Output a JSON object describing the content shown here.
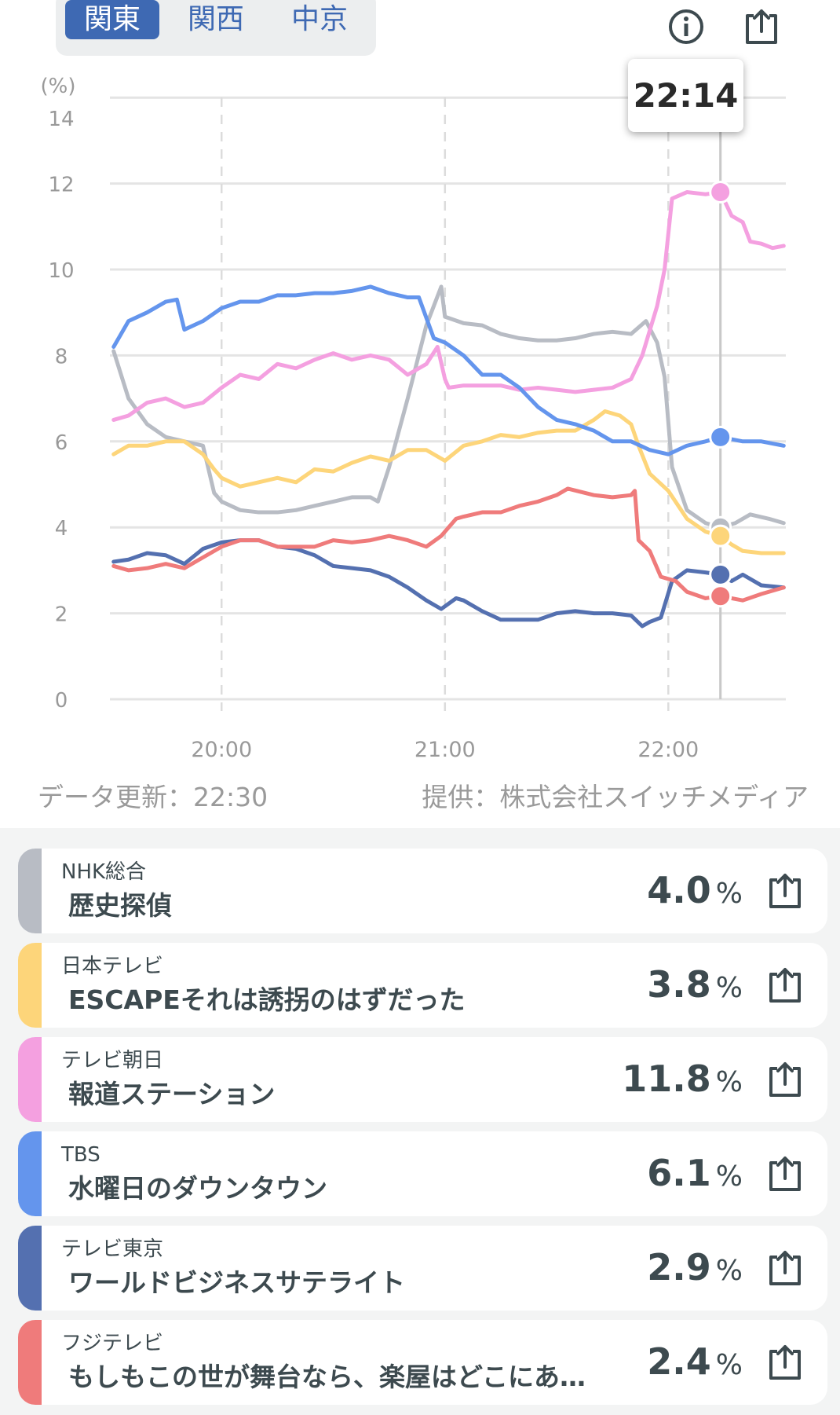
{
  "tabs": [
    {
      "label": "関東",
      "active": true
    },
    {
      "label": "関西",
      "active": false
    },
    {
      "label": "中京",
      "active": false
    }
  ],
  "header_icons": [
    "info-icon",
    "share-icon"
  ],
  "tooltip": {
    "time": "22:14"
  },
  "footer": {
    "updated": "データ更新：22:30",
    "provider": "提供：株式会社スイッチメディア"
  },
  "chart_data": {
    "type": "line",
    "ylabel": "(%)",
    "ylim": [
      0,
      14
    ],
    "yticks": [
      "0",
      "2",
      "4",
      "6",
      "8",
      "10",
      "12",
      "14"
    ],
    "xlim_minutes_from_1930": [
      0,
      182
    ],
    "xticks": [
      {
        "label": "20:00",
        "minute": 30
      },
      {
        "label": "21:00",
        "minute": 90
      },
      {
        "label": "22:00",
        "minute": 150
      }
    ],
    "cursor_minute": 164,
    "grid": true,
    "series": [
      {
        "name": "NHK総合",
        "color": "#b8bcc4",
        "cursor_value": 4.0,
        "points": [
          [
            1,
            8.1
          ],
          [
            5,
            7.0
          ],
          [
            10,
            6.4
          ],
          [
            15,
            6.1
          ],
          [
            20,
            6.0
          ],
          [
            25,
            5.9
          ],
          [
            28,
            4.8
          ],
          [
            30,
            4.6
          ],
          [
            35,
            4.4
          ],
          [
            40,
            4.35
          ],
          [
            45,
            4.35
          ],
          [
            50,
            4.4
          ],
          [
            55,
            4.5
          ],
          [
            60,
            4.6
          ],
          [
            65,
            4.7
          ],
          [
            70,
            4.7
          ],
          [
            72,
            4.6
          ],
          [
            75,
            5.4
          ],
          [
            80,
            7.0
          ],
          [
            85,
            8.7
          ],
          [
            89,
            9.6
          ],
          [
            90,
            8.9
          ],
          [
            95,
            8.75
          ],
          [
            100,
            8.7
          ],
          [
            105,
            8.5
          ],
          [
            110,
            8.4
          ],
          [
            115,
            8.35
          ],
          [
            120,
            8.35
          ],
          [
            125,
            8.4
          ],
          [
            130,
            8.5
          ],
          [
            135,
            8.55
          ],
          [
            140,
            8.5
          ],
          [
            144,
            8.8
          ],
          [
            147,
            8.3
          ],
          [
            149,
            7.5
          ],
          [
            151,
            5.4
          ],
          [
            155,
            4.4
          ],
          [
            160,
            4.1
          ],
          [
            164,
            4.0
          ],
          [
            168,
            4.1
          ],
          [
            172,
            4.3
          ],
          [
            177,
            4.2
          ],
          [
            181,
            4.1
          ]
        ]
      },
      {
        "name": "日本テレビ",
        "color": "#fdd57a",
        "cursor_value": 3.8,
        "points": [
          [
            1,
            5.7
          ],
          [
            5,
            5.9
          ],
          [
            10,
            5.9
          ],
          [
            15,
            6.0
          ],
          [
            20,
            6.0
          ],
          [
            25,
            5.7
          ],
          [
            28,
            5.35
          ],
          [
            30,
            5.15
          ],
          [
            35,
            4.95
          ],
          [
            40,
            5.05
          ],
          [
            45,
            5.15
          ],
          [
            50,
            5.05
          ],
          [
            55,
            5.35
          ],
          [
            60,
            5.3
          ],
          [
            65,
            5.5
          ],
          [
            70,
            5.65
          ],
          [
            75,
            5.55
          ],
          [
            80,
            5.8
          ],
          [
            85,
            5.8
          ],
          [
            90,
            5.55
          ],
          [
            95,
            5.9
          ],
          [
            100,
            6.0
          ],
          [
            105,
            6.15
          ],
          [
            110,
            6.1
          ],
          [
            115,
            6.2
          ],
          [
            120,
            6.25
          ],
          [
            125,
            6.25
          ],
          [
            130,
            6.5
          ],
          [
            133,
            6.7
          ],
          [
            137,
            6.6
          ],
          [
            140,
            6.4
          ],
          [
            142,
            5.9
          ],
          [
            145,
            5.25
          ],
          [
            150,
            4.85
          ],
          [
            155,
            4.2
          ],
          [
            160,
            3.9
          ],
          [
            164,
            3.8
          ],
          [
            167,
            3.6
          ],
          [
            170,
            3.45
          ],
          [
            175,
            3.4
          ],
          [
            181,
            3.4
          ]
        ]
      },
      {
        "name": "テレビ朝日",
        "color": "#f4a0e0",
        "cursor_value": 11.8,
        "points": [
          [
            1,
            6.5
          ],
          [
            5,
            6.6
          ],
          [
            10,
            6.9
          ],
          [
            15,
            7.0
          ],
          [
            20,
            6.8
          ],
          [
            25,
            6.9
          ],
          [
            30,
            7.25
          ],
          [
            35,
            7.55
          ],
          [
            40,
            7.45
          ],
          [
            45,
            7.8
          ],
          [
            50,
            7.7
          ],
          [
            55,
            7.9
          ],
          [
            60,
            8.05
          ],
          [
            65,
            7.9
          ],
          [
            70,
            8.0
          ],
          [
            75,
            7.9
          ],
          [
            80,
            7.55
          ],
          [
            85,
            7.8
          ],
          [
            88,
            8.2
          ],
          [
            90,
            7.45
          ],
          [
            91,
            7.25
          ],
          [
            95,
            7.3
          ],
          [
            100,
            7.3
          ],
          [
            105,
            7.3
          ],
          [
            110,
            7.2
          ],
          [
            115,
            7.25
          ],
          [
            120,
            7.2
          ],
          [
            125,
            7.15
          ],
          [
            130,
            7.2
          ],
          [
            135,
            7.25
          ],
          [
            140,
            7.45
          ],
          [
            143,
            8.0
          ],
          [
            147,
            9.15
          ],
          [
            149,
            10.0
          ],
          [
            151,
            11.65
          ],
          [
            155,
            11.8
          ],
          [
            160,
            11.75
          ],
          [
            164,
            11.8
          ],
          [
            167,
            11.25
          ],
          [
            170,
            11.1
          ],
          [
            172,
            10.65
          ],
          [
            175,
            10.6
          ],
          [
            178,
            10.5
          ],
          [
            181,
            10.55
          ]
        ]
      },
      {
        "name": "TBS",
        "color": "#6495ed",
        "cursor_value": 6.1,
        "points": [
          [
            1,
            8.2
          ],
          [
            5,
            8.8
          ],
          [
            10,
            9.0
          ],
          [
            15,
            9.25
          ],
          [
            18,
            9.3
          ],
          [
            20,
            8.6
          ],
          [
            25,
            8.8
          ],
          [
            30,
            9.1
          ],
          [
            35,
            9.25
          ],
          [
            40,
            9.25
          ],
          [
            45,
            9.4
          ],
          [
            50,
            9.4
          ],
          [
            55,
            9.45
          ],
          [
            60,
            9.45
          ],
          [
            65,
            9.5
          ],
          [
            70,
            9.6
          ],
          [
            75,
            9.45
          ],
          [
            80,
            9.35
          ],
          [
            83,
            9.35
          ],
          [
            87,
            8.4
          ],
          [
            90,
            8.3
          ],
          [
            95,
            8.0
          ],
          [
            100,
            7.55
          ],
          [
            105,
            7.55
          ],
          [
            110,
            7.25
          ],
          [
            115,
            6.8
          ],
          [
            120,
            6.5
          ],
          [
            125,
            6.4
          ],
          [
            130,
            6.25
          ],
          [
            135,
            6.0
          ],
          [
            140,
            6.0
          ],
          [
            145,
            5.8
          ],
          [
            150,
            5.7
          ],
          [
            155,
            5.9
          ],
          [
            160,
            6.0
          ],
          [
            164,
            6.1
          ],
          [
            170,
            6.0
          ],
          [
            175,
            6.0
          ],
          [
            181,
            5.9
          ]
        ]
      },
      {
        "name": "テレビ東京",
        "color": "#5470b0",
        "cursor_value": 2.9,
        "points": [
          [
            1,
            3.2
          ],
          [
            5,
            3.25
          ],
          [
            10,
            3.4
          ],
          [
            15,
            3.35
          ],
          [
            20,
            3.15
          ],
          [
            25,
            3.5
          ],
          [
            30,
            3.65
          ],
          [
            35,
            3.7
          ],
          [
            40,
            3.7
          ],
          [
            45,
            3.55
          ],
          [
            50,
            3.5
          ],
          [
            55,
            3.35
          ],
          [
            60,
            3.1
          ],
          [
            65,
            3.05
          ],
          [
            70,
            3.0
          ],
          [
            75,
            2.85
          ],
          [
            80,
            2.6
          ],
          [
            85,
            2.3
          ],
          [
            89,
            2.1
          ],
          [
            93,
            2.35
          ],
          [
            95,
            2.3
          ],
          [
            100,
            2.05
          ],
          [
            105,
            1.85
          ],
          [
            110,
            1.85
          ],
          [
            115,
            1.85
          ],
          [
            120,
            2.0
          ],
          [
            125,
            2.05
          ],
          [
            130,
            2.0
          ],
          [
            135,
            2.0
          ],
          [
            140,
            1.95
          ],
          [
            143,
            1.7
          ],
          [
            145,
            1.8
          ],
          [
            148,
            1.9
          ],
          [
            151,
            2.75
          ],
          [
            155,
            3.0
          ],
          [
            160,
            2.95
          ],
          [
            164,
            2.9
          ],
          [
            167,
            2.75
          ],
          [
            170,
            2.9
          ],
          [
            175,
            2.65
          ],
          [
            181,
            2.6
          ]
        ]
      },
      {
        "name": "フジテレビ",
        "color": "#ef7b7b",
        "cursor_value": 2.4,
        "points": [
          [
            1,
            3.1
          ],
          [
            5,
            3.0
          ],
          [
            10,
            3.05
          ],
          [
            15,
            3.15
          ],
          [
            20,
            3.05
          ],
          [
            25,
            3.3
          ],
          [
            30,
            3.55
          ],
          [
            35,
            3.7
          ],
          [
            40,
            3.7
          ],
          [
            45,
            3.55
          ],
          [
            50,
            3.55
          ],
          [
            55,
            3.55
          ],
          [
            60,
            3.7
          ],
          [
            65,
            3.65
          ],
          [
            70,
            3.7
          ],
          [
            75,
            3.8
          ],
          [
            80,
            3.7
          ],
          [
            85,
            3.55
          ],
          [
            89,
            3.8
          ],
          [
            93,
            4.2
          ],
          [
            95,
            4.25
          ],
          [
            100,
            4.35
          ],
          [
            105,
            4.35
          ],
          [
            110,
            4.5
          ],
          [
            115,
            4.6
          ],
          [
            120,
            4.75
          ],
          [
            123,
            4.9
          ],
          [
            130,
            4.75
          ],
          [
            135,
            4.7
          ],
          [
            140,
            4.75
          ],
          [
            141,
            4.85
          ],
          [
            142,
            3.7
          ],
          [
            145,
            3.45
          ],
          [
            148,
            2.85
          ],
          [
            152,
            2.75
          ],
          [
            155,
            2.5
          ],
          [
            160,
            2.35
          ],
          [
            164,
            2.4
          ],
          [
            170,
            2.3
          ],
          [
            175,
            2.45
          ],
          [
            181,
            2.6
          ]
        ]
      }
    ]
  },
  "programs": [
    {
      "channel": "NHK総合",
      "title": "歴史探偵",
      "rating": "4.0",
      "unit": "%",
      "color": "#b8bcc4"
    },
    {
      "channel": "日本テレビ",
      "title": "ESCAPEそれは誘拐のはずだった",
      "rating": "3.8",
      "unit": "%",
      "color": "#fdd57a"
    },
    {
      "channel": "テレビ朝日",
      "title": "報道ステーション",
      "rating": "11.8",
      "unit": "%",
      "color": "#f4a0e0"
    },
    {
      "channel": "TBS",
      "title": "水曜日のダウンタウン",
      "rating": "6.1",
      "unit": "%",
      "color": "#6495ed"
    },
    {
      "channel": "テレビ東京",
      "title": "ワールドビジネスサテライト",
      "rating": "2.9",
      "unit": "%",
      "color": "#5470b0"
    },
    {
      "channel": "フジテレビ",
      "title": "もしもこの世が舞台なら、楽屋はどこにあ…",
      "rating": "2.4",
      "unit": "%",
      "color": "#ef7b7b"
    }
  ]
}
